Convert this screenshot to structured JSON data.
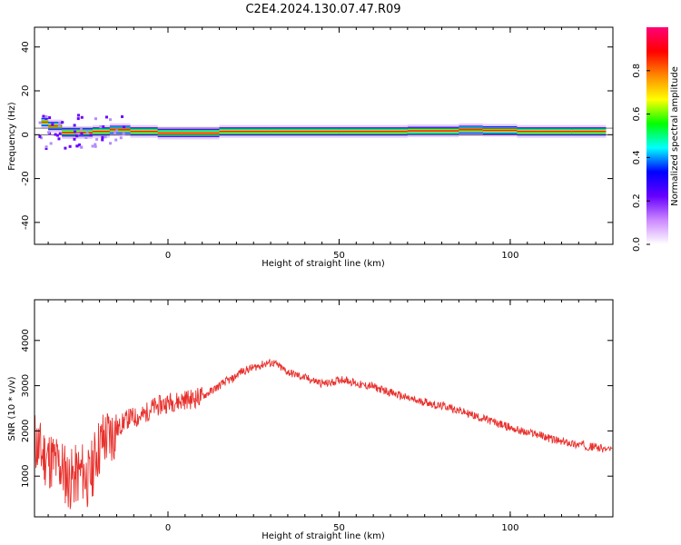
{
  "title": "C2E4.2024.130.07.47.R09",
  "chart_data": [
    {
      "type": "heatmap",
      "xlabel": "Height of straight line (km)",
      "ylabel": "Frequency (Hz)",
      "xlim": [
        -39,
        130
      ],
      "ylim": [
        -50,
        49
      ],
      "xticks": [
        0,
        50,
        100
      ],
      "yticks": [
        -40,
        -20,
        0,
        20,
        40
      ],
      "colorbar": {
        "label": "Normalized spectral amplitude",
        "range": [
          0,
          1
        ],
        "ticks": [
          "0.0",
          "0.2",
          "0.4",
          "0.6",
          "0.8"
        ],
        "colors": [
          "#ffffff",
          "#cc88ff",
          "#6600ff",
          "#0000ff",
          "#00ffff",
          "#00ff00",
          "#ffff00",
          "#ff8800",
          "#ff0000",
          "#ff0077"
        ]
      },
      "band": {
        "min_freq_hz": 0,
        "max_freq_hz": 3,
        "center_freq_hz": 1.5,
        "description_points": [
          {
            "x": -37,
            "y": 5.5,
            "v": 0.85
          },
          {
            "x": -35,
            "y": 6,
            "v": 0.9
          },
          {
            "x": -31,
            "y": 2,
            "v": 0.8
          },
          {
            "x": -27,
            "y": 0,
            "v": 0.7
          },
          {
            "x": -24,
            "y": 2,
            "v": 0.75
          },
          {
            "x": -22,
            "y": 0,
            "v": 0.7
          },
          {
            "x": -17,
            "y": 3,
            "v": 0.85
          },
          {
            "x": -11,
            "y": 1.5,
            "v": 0.75
          },
          {
            "x": -3,
            "y": 1.5,
            "v": 0.85
          },
          {
            "x": 4,
            "y": 0,
            "v": 0.75
          },
          {
            "x": 15,
            "y": 1.5,
            "v": 0.9
          },
          {
            "x": 30,
            "y": 1.5,
            "v": 0.95
          },
          {
            "x": 50,
            "y": 1.5,
            "v": 0.95
          },
          {
            "x": 70,
            "y": 1.5,
            "v": 0.95
          },
          {
            "x": 85,
            "y": 2,
            "v": 0.9
          },
          {
            "x": 92,
            "y": 2.5,
            "v": 0.9
          },
          {
            "x": 102,
            "y": 1.5,
            "v": 0.85
          },
          {
            "x": 108,
            "y": 1.5,
            "v": 0.8
          },
          {
            "x": 118,
            "y": 1.5,
            "v": 0.85
          },
          {
            "x": 128,
            "y": 1.5,
            "v": 0.8
          }
        ]
      }
    },
    {
      "type": "line",
      "xlabel": "Height of straight line (km)",
      "ylabel": "SNR (10 * v/v)",
      "xlim": [
        -39,
        130
      ],
      "ylim": [
        100,
        4900
      ],
      "xticks": [
        0,
        50,
        100
      ],
      "yticks": [
        1000,
        2000,
        3000,
        4000
      ],
      "line_color": "#e8302c",
      "series": [
        {
          "x": [
            -39,
            -37,
            -35,
            -33,
            -31,
            -29,
            -27,
            -25,
            -23,
            -21,
            -19,
            -17,
            -15,
            -13,
            -11,
            -9,
            -7,
            -5,
            -3,
            -1,
            1,
            3,
            5,
            7,
            9,
            11,
            13,
            15,
            17,
            19,
            21,
            23,
            25,
            27,
            29,
            31,
            33,
            35,
            37,
            39,
            41,
            43,
            45,
            47,
            49,
            51,
            53,
            55,
            57,
            59,
            61,
            63,
            65,
            67,
            69,
            71,
            73,
            75,
            77,
            79,
            81,
            83,
            85,
            87,
            89,
            91,
            93,
            95,
            97,
            99,
            101,
            103,
            105,
            107,
            109,
            111,
            113,
            115,
            117,
            119,
            121,
            123,
            125,
            127,
            130
          ],
          "y": [
            1800,
            1500,
            1400,
            1300,
            1200,
            900,
            1000,
            1100,
            900,
            1500,
            1800,
            1900,
            2000,
            2200,
            2300,
            2300,
            2350,
            2500,
            2550,
            2600,
            2650,
            2650,
            2700,
            2700,
            2750,
            2800,
            2900,
            3000,
            3100,
            3150,
            3300,
            3350,
            3400,
            3450,
            3500,
            3500,
            3400,
            3300,
            3250,
            3200,
            3150,
            3100,
            3050,
            3050,
            3100,
            3150,
            3100,
            3050,
            3000,
            3000,
            2950,
            2900,
            2850,
            2800,
            2750,
            2700,
            2650,
            2650,
            2600,
            2550,
            2550,
            2500,
            2450,
            2400,
            2350,
            2300,
            2250,
            2200,
            2150,
            2100,
            2050,
            2000,
            1950,
            1950,
            1900,
            1850,
            1800,
            1750,
            1750,
            1700,
            1700,
            1650,
            1650,
            1600,
            1600
          ]
        }
      ]
    }
  ]
}
